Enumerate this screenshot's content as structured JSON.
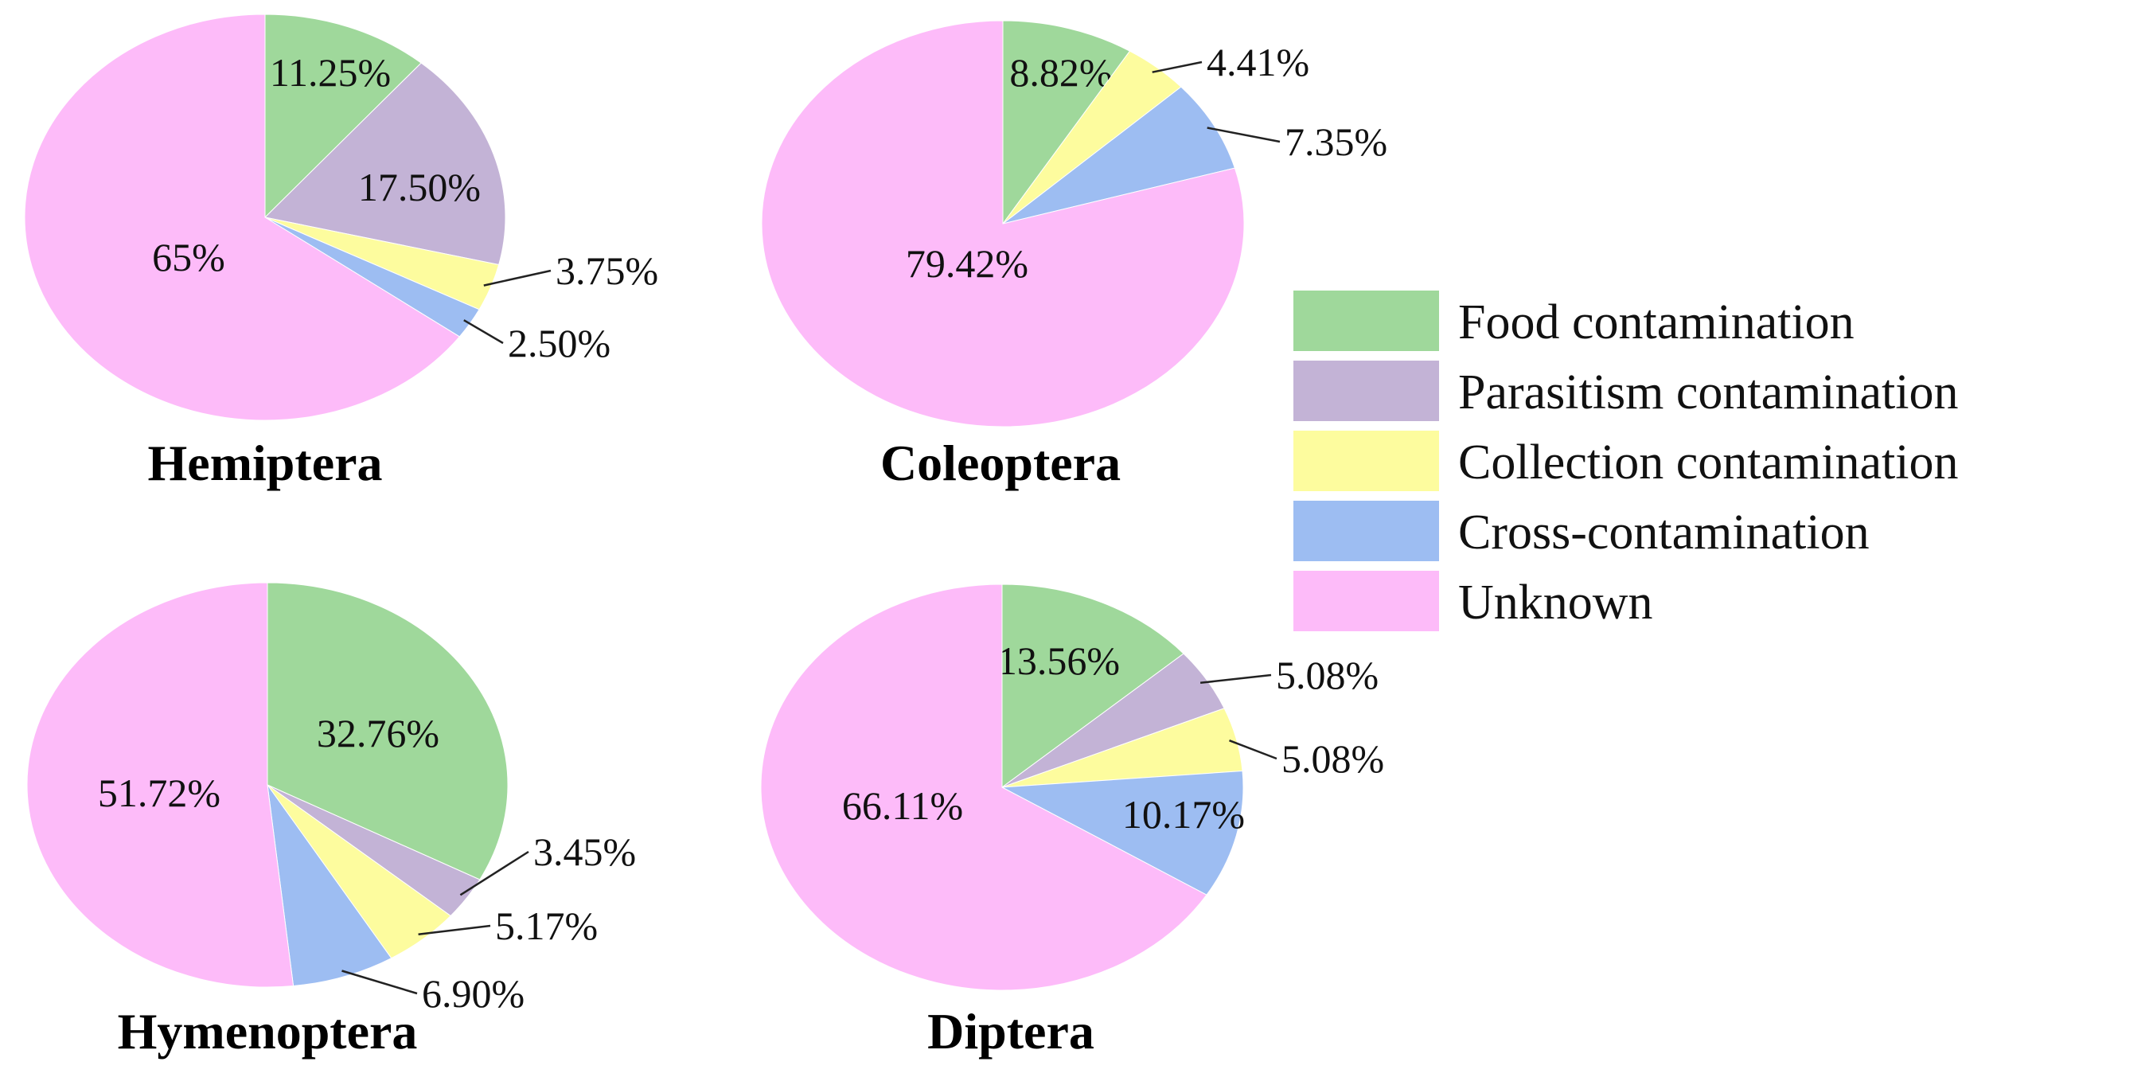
{
  "chart_data": [
    {
      "type": "pie",
      "title": "Hemiptera",
      "slices": [
        {
          "category": "Food contamination",
          "value": 11.25,
          "label": "11.25%"
        },
        {
          "category": "Parasitism contamination",
          "value": 17.5,
          "label": "17.50%"
        },
        {
          "category": "Collection contamination",
          "value": 3.75,
          "label": "3.75%"
        },
        {
          "category": "Cross-contamination",
          "value": 2.5,
          "label": "2.50%"
        },
        {
          "category": "Unknown",
          "value": 65,
          "label": "65%"
        }
      ]
    },
    {
      "type": "pie",
      "title": "Coleoptera",
      "slices": [
        {
          "category": "Food contamination",
          "value": 8.82,
          "label": "8.82%"
        },
        {
          "category": "Collection contamination",
          "value": 4.41,
          "label": "4.41%"
        },
        {
          "category": "Cross-contamination",
          "value": 7.35,
          "label": "7.35%"
        },
        {
          "category": "Unknown",
          "value": 79.42,
          "label": "79.42%"
        }
      ]
    },
    {
      "type": "pie",
      "title": "Hymenoptera",
      "slices": [
        {
          "category": "Food contamination",
          "value": 32.76,
          "label": "32.76%"
        },
        {
          "category": "Parasitism contamination",
          "value": 3.45,
          "label": "3.45%"
        },
        {
          "category": "Collection contamination",
          "value": 5.17,
          "label": "5.17%"
        },
        {
          "category": "Cross-contamination",
          "value": 6.9,
          "label": "6.90%"
        },
        {
          "category": "Unknown",
          "value": 51.72,
          "label": "51.72%"
        }
      ]
    },
    {
      "type": "pie",
      "title": "Diptera",
      "slices": [
        {
          "category": "Food contamination",
          "value": 13.56,
          "label": "13.56%"
        },
        {
          "category": "Parasitism contamination",
          "value": 5.08,
          "label": "5.08%"
        },
        {
          "category": "Collection contamination",
          "value": 5.08,
          "label": "5.08%"
        },
        {
          "category": "Cross-contamination",
          "value": 10.17,
          "label": "10.17%"
        },
        {
          "category": "Unknown",
          "value": 66.11,
          "label": "66.11%"
        }
      ]
    }
  ],
  "legend": {
    "position": "right",
    "items": [
      {
        "label": "Food contamination",
        "color": "#9fd89b"
      },
      {
        "label": "Parasitism contamination",
        "color": "#c3b3d6"
      },
      {
        "label": "Collection contamination",
        "color": "#fdfc9e"
      },
      {
        "label": "Cross-contamination",
        "color": "#9dbdf2"
      },
      {
        "label": "Unknown",
        "color": "#fdbbf9"
      }
    ]
  }
}
